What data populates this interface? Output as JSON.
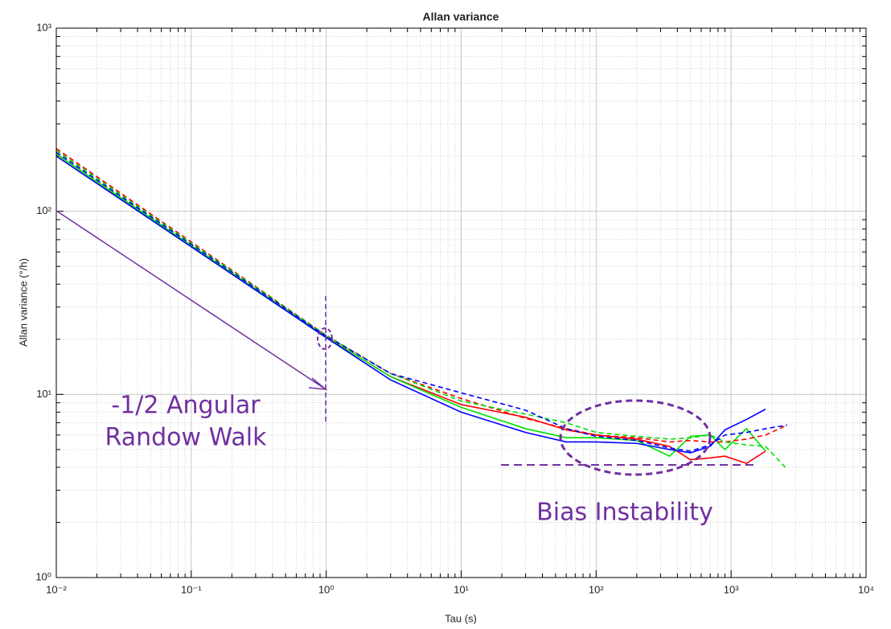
{
  "chart_data": {
    "type": "line",
    "title": "Allan variance",
    "x_label": "Tau (s)",
    "y_label": "Allan variance (°/h)",
    "x_scale": "log",
    "y_scale": "log",
    "grid": true,
    "xlim": [
      0.01,
      10000
    ],
    "ylim": [
      1,
      1000
    ],
    "xticks": [
      {
        "value": 0.01,
        "label": "10⁻²"
      },
      {
        "value": 0.1,
        "label": "10⁻¹"
      },
      {
        "value": 1,
        "label": "10⁰"
      },
      {
        "value": 10,
        "label": "10¹"
      },
      {
        "value": 100,
        "label": "10²"
      },
      {
        "value": 1000,
        "label": "10³"
      },
      {
        "value": 10000,
        "label": "10⁴"
      }
    ],
    "yticks": [
      {
        "value": 1,
        "label": "10⁰"
      },
      {
        "value": 10,
        "label": "10¹"
      },
      {
        "value": 100,
        "label": "10²"
      },
      {
        "value": 1000,
        "label": "10³"
      }
    ],
    "x": [
      0.01,
      0.1,
      1,
      3,
      10,
      30,
      60,
      100,
      200,
      350,
      500,
      700,
      900,
      1300,
      1800,
      2600
    ],
    "series": [
      {
        "color": "#ff0000",
        "dashed": false,
        "values": [
          205,
          65,
          20.6,
          12.5,
          8.8,
          7.5,
          6.4,
          6.0,
          5.7,
          5.2,
          4.4,
          4.5,
          4.6,
          4.2,
          4.9,
          null
        ]
      },
      {
        "color": "#00e000",
        "dashed": false,
        "values": [
          205,
          65,
          20.6,
          12.5,
          8.5,
          6.5,
          5.8,
          5.8,
          5.6,
          4.6,
          5.9,
          6.0,
          5.0,
          6.5,
          4.9,
          null
        ]
      },
      {
        "color": "#0000ff",
        "dashed": false,
        "values": [
          200,
          64,
          20.4,
          12.0,
          8.0,
          6.2,
          5.5,
          5.5,
          5.4,
          5.0,
          4.8,
          5.2,
          6.4,
          7.3,
          8.3,
          null
        ]
      },
      {
        "color": "#ff0000",
        "dashed": true,
        "values": [
          220,
          68,
          21,
          13,
          9.5,
          7.4,
          6.5,
          6.0,
          5.8,
          5.5,
          5.6,
          5.5,
          5.5,
          5.7,
          6.0,
          6.8
        ]
      },
      {
        "color": "#00e000",
        "dashed": true,
        "values": [
          215,
          67,
          21,
          13,
          9.2,
          7.8,
          7.0,
          6.2,
          5.9,
          5.7,
          5.8,
          6.0,
          5.5,
          5.3,
          5.2,
          3.9
        ]
      },
      {
        "color": "#0000ff",
        "dashed": true,
        "values": [
          210,
          66,
          20.8,
          13,
          10.2,
          8.2,
          6.5,
          5.9,
          5.6,
          5.1,
          4.9,
          5.3,
          6.0,
          6.2,
          6.5,
          6.8
        ]
      }
    ],
    "annotations": [
      "-1/2 Angular",
      "Randow Walk",
      "Bias Instability"
    ]
  }
}
